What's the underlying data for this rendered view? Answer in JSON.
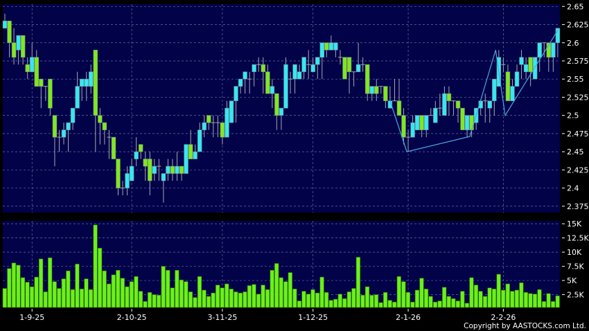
{
  "chart_data": {
    "type": "candlestick",
    "title": "",
    "colors": {
      "up": "#35e8f2",
      "down": "#80e81c",
      "doji": "#a0a0a0",
      "wick": "#a8a8b0",
      "volume": "#6cf01a",
      "background": "#020249",
      "grid": "#6a6aa8",
      "trendline": "#4aa8e0"
    },
    "price_axis": {
      "ylim": [
        2.37,
        2.65
      ],
      "ticks": [
        "2.65",
        "2.625",
        "2.6",
        "2.575",
        "2.55",
        "2.525",
        "2.5",
        "2.475",
        "2.45",
        "2.425",
        "2.4",
        "2.375"
      ],
      "grid": true
    },
    "volume_axis": {
      "unit": "K",
      "ylim": [
        0,
        15.3
      ],
      "ticks": [
        "15K",
        "12.5K",
        "10K",
        "7.5K",
        "5K",
        "2.5K"
      ],
      "grid": true
    },
    "x_ticks": [
      {
        "index": 6,
        "label": "1-9-25"
      },
      {
        "index": 28,
        "label": "2-10-25"
      },
      {
        "index": 48,
        "label": "3-11-25"
      },
      {
        "index": 68,
        "label": "1-12-25"
      },
      {
        "index": 89,
        "label": "2-1-26"
      },
      {
        "index": 110,
        "label": "2-2-26"
      }
    ],
    "ohlc": [
      [
        2.62,
        2.64,
        2.62,
        2.63
      ],
      [
        2.63,
        2.63,
        2.58,
        2.6
      ],
      [
        2.6,
        2.62,
        2.57,
        2.58
      ],
      [
        2.59,
        2.61,
        2.57,
        2.61
      ],
      [
        2.61,
        2.61,
        2.57,
        2.58
      ],
      [
        2.57,
        2.58,
        2.55,
        2.56
      ],
      [
        2.56,
        2.6,
        2.56,
        2.58
      ],
      [
        2.58,
        2.59,
        2.54,
        2.54
      ],
      [
        2.55,
        2.55,
        2.51,
        2.54
      ],
      [
        2.54,
        2.54,
        2.52,
        2.54
      ],
      [
        2.55,
        2.55,
        2.5,
        2.51
      ],
      [
        2.5,
        2.5,
        2.43,
        2.47
      ],
      [
        2.47,
        2.48,
        2.45,
        2.47
      ],
      [
        2.47,
        2.49,
        2.46,
        2.48
      ],
      [
        2.48,
        2.49,
        2.45,
        2.49
      ],
      [
        2.49,
        2.51,
        2.48,
        2.51
      ],
      [
        2.51,
        2.56,
        2.51,
        2.54
      ],
      [
        2.54,
        2.55,
        2.52,
        2.55
      ],
      [
        2.54,
        2.56,
        2.52,
        2.55
      ],
      [
        2.54,
        2.57,
        2.53,
        2.56
      ],
      [
        2.59,
        2.59,
        2.45,
        2.5
      ],
      [
        2.5,
        2.51,
        2.46,
        2.49
      ],
      [
        2.49,
        2.49,
        2.46,
        2.48
      ],
      [
        2.47,
        2.48,
        2.44,
        2.47
      ],
      [
        2.47,
        2.47,
        2.44,
        2.44
      ],
      [
        2.44,
        2.44,
        2.39,
        2.4
      ],
      [
        2.4,
        2.41,
        2.39,
        2.4
      ],
      [
        2.4,
        2.43,
        2.39,
        2.42
      ],
      [
        2.41,
        2.44,
        2.41,
        2.43
      ],
      [
        2.44,
        2.47,
        2.43,
        2.45
      ],
      [
        2.46,
        2.46,
        2.44,
        2.45
      ],
      [
        2.44,
        2.45,
        2.41,
        2.43
      ],
      [
        2.44,
        2.45,
        2.39,
        2.41
      ],
      [
        2.42,
        2.44,
        2.41,
        2.43
      ],
      [
        2.43,
        2.44,
        2.41,
        2.43
      ],
      [
        2.41,
        2.42,
        2.38,
        2.42
      ],
      [
        2.42,
        2.44,
        2.41,
        2.43
      ],
      [
        2.43,
        2.44,
        2.41,
        2.42
      ],
      [
        2.42,
        2.45,
        2.41,
        2.43
      ],
      [
        2.43,
        2.43,
        2.41,
        2.42
      ],
      [
        2.42,
        2.46,
        2.42,
        2.46
      ],
      [
        2.46,
        2.48,
        2.44,
        2.44
      ],
      [
        2.44,
        2.46,
        2.44,
        2.45
      ],
      [
        2.45,
        2.49,
        2.45,
        2.48
      ],
      [
        2.48,
        2.5,
        2.47,
        2.49
      ],
      [
        2.5,
        2.5,
        2.48,
        2.49
      ],
      [
        2.49,
        2.5,
        2.47,
        2.49
      ],
      [
        2.49,
        2.5,
        2.47,
        2.49
      ],
      [
        2.49,
        2.49,
        2.46,
        2.47
      ],
      [
        2.47,
        2.52,
        2.47,
        2.51
      ],
      [
        2.49,
        2.52,
        2.49,
        2.52
      ],
      [
        2.52,
        2.54,
        2.49,
        2.54
      ],
      [
        2.54,
        2.55,
        2.53,
        2.55
      ],
      [
        2.55,
        2.56,
        2.53,
        2.56
      ],
      [
        2.55,
        2.56,
        2.53,
        2.55
      ],
      [
        2.56,
        2.57,
        2.54,
        2.57
      ],
      [
        2.57,
        2.58,
        2.56,
        2.57
      ],
      [
        2.57,
        2.58,
        2.53,
        2.56
      ],
      [
        2.56,
        2.57,
        2.53,
        2.53
      ],
      [
        2.53,
        2.55,
        2.51,
        2.54
      ],
      [
        2.53,
        2.53,
        2.48,
        2.5
      ],
      [
        2.5,
        2.51,
        2.48,
        2.51
      ],
      [
        2.51,
        2.58,
        2.51,
        2.57
      ],
      [
        2.55,
        2.56,
        2.53,
        2.55
      ],
      [
        2.55,
        2.57,
        2.53,
        2.57
      ],
      [
        2.55,
        2.57,
        2.55,
        2.56
      ],
      [
        2.56,
        2.58,
        2.55,
        2.58
      ],
      [
        2.57,
        2.59,
        2.55,
        2.57
      ],
      [
        2.56,
        2.58,
        2.56,
        2.57
      ],
      [
        2.57,
        2.58,
        2.55,
        2.58
      ],
      [
        2.58,
        2.6,
        2.55,
        2.6
      ],
      [
        2.6,
        2.6,
        2.58,
        2.59
      ],
      [
        2.59,
        2.61,
        2.59,
        2.6
      ],
      [
        2.59,
        2.6,
        2.58,
        2.6
      ],
      [
        2.58,
        2.59,
        2.57,
        2.58
      ],
      [
        2.58,
        2.58,
        2.55,
        2.55
      ],
      [
        2.58,
        2.58,
        2.53,
        2.56
      ],
      [
        2.56,
        2.56,
        2.54,
        2.56
      ],
      [
        2.56,
        2.6,
        2.56,
        2.57
      ],
      [
        2.57,
        2.58,
        2.56,
        2.57
      ],
      [
        2.57,
        2.57,
        2.52,
        2.53
      ],
      [
        2.53,
        2.54,
        2.52,
        2.54
      ],
      [
        2.54,
        2.55,
        2.52,
        2.53
      ],
      [
        2.54,
        2.54,
        2.53,
        2.54
      ],
      [
        2.54,
        2.54,
        2.51,
        2.52
      ],
      [
        2.51,
        2.54,
        2.51,
        2.52
      ],
      [
        2.52,
        2.55,
        2.52,
        2.52
      ],
      [
        2.52,
        2.55,
        2.5,
        2.5
      ],
      [
        2.5,
        2.51,
        2.46,
        2.47
      ],
      [
        2.47,
        2.48,
        2.45,
        2.47
      ],
      [
        2.47,
        2.5,
        2.47,
        2.49
      ],
      [
        2.48,
        2.5,
        2.48,
        2.5
      ],
      [
        2.5,
        2.5,
        2.47,
        2.48
      ],
      [
        2.48,
        2.5,
        2.47,
        2.5
      ],
      [
        2.5,
        2.51,
        2.5,
        2.5
      ],
      [
        2.49,
        2.52,
        2.49,
        2.51
      ],
      [
        2.51,
        2.53,
        2.5,
        2.51
      ],
      [
        2.5,
        2.54,
        2.5,
        2.53
      ],
      [
        2.53,
        2.54,
        2.5,
        2.52
      ],
      [
        2.52,
        2.52,
        2.5,
        2.52
      ],
      [
        2.52,
        2.52,
        2.49,
        2.51
      ],
      [
        2.51,
        2.51,
        2.48,
        2.48
      ],
      [
        2.48,
        2.5,
        2.47,
        2.5
      ],
      [
        2.5,
        2.5,
        2.47,
        2.48
      ],
      [
        2.49,
        2.51,
        2.48,
        2.51
      ],
      [
        2.51,
        2.52,
        2.5,
        2.52
      ],
      [
        2.52,
        2.53,
        2.49,
        2.52
      ],
      [
        2.51,
        2.52,
        2.49,
        2.52
      ],
      [
        2.52,
        2.55,
        2.5,
        2.55
      ],
      [
        2.54,
        2.59,
        2.54,
        2.58
      ],
      [
        2.57,
        2.58,
        2.56,
        2.57
      ],
      [
        2.56,
        2.57,
        2.52,
        2.52
      ],
      [
        2.52,
        2.55,
        2.52,
        2.54
      ],
      [
        2.54,
        2.57,
        2.54,
        2.56
      ],
      [
        2.57,
        2.59,
        2.55,
        2.58
      ],
      [
        2.56,
        2.58,
        2.55,
        2.57
      ],
      [
        2.58,
        2.58,
        2.54,
        2.56
      ],
      [
        2.55,
        2.58,
        2.55,
        2.58
      ],
      [
        2.58,
        2.6,
        2.56,
        2.6
      ],
      [
        2.6,
        2.6,
        2.58,
        2.6
      ],
      [
        2.6,
        2.6,
        2.56,
        2.58
      ],
      [
        2.58,
        2.6,
        2.56,
        2.6
      ],
      [
        2.6,
        2.62,
        2.58,
        2.62
      ]
    ],
    "volume_k": [
      3.6,
      7.1,
      8.1,
      7.7,
      5.5,
      4.7,
      3.9,
      5.6,
      8.8,
      3.0,
      9.0,
      4.8,
      3.6,
      5.3,
      6.7,
      3.4,
      7.9,
      3.5,
      5.3,
      3.4,
      14.8,
      10.7,
      6.7,
      4.4,
      6.0,
      6.8,
      5.4,
      3.9,
      4.8,
      5.7,
      3.1,
      1.3,
      2.9,
      2.5,
      2.4,
      7.5,
      6.8,
      3.7,
      6.8,
      5.1,
      4.8,
      3.0,
      2.0,
      5.7,
      3.3,
      2.2,
      2.8,
      4.2,
      3.7,
      4.4,
      3.5,
      3.0,
      2.8,
      3.0,
      4.1,
      4.3,
      2.6,
      4.2,
      3.4,
      6.8,
      8.0,
      5.5,
      4.8,
      6.4,
      3.5,
      1.4,
      3.1,
      2.6,
      3.4,
      2.8,
      5.6,
      2.9,
      1.5,
      1.7,
      2.6,
      1.8,
      3.0,
      3.6,
      9.1,
      2.4,
      3.9,
      2.4,
      2.5,
      1.1,
      2.9,
      1.5,
      1.2,
      5.7,
      4.8,
      2.9,
      1.2,
      3.3,
      5.4,
      3.5,
      2.2,
      1.2,
      1.4,
      3.8,
      2.2,
      1.8,
      1.4,
      3.1,
      1.0,
      5.5,
      4.2,
      3.1,
      2.2,
      3.7,
      3.5,
      6.1,
      3.3,
      4.4,
      3.1,
      3.3,
      4.6,
      2.9,
      2.7,
      2.6,
      3.4,
      1.3,
      2.7,
      1.3,
      2.3
    ],
    "trendlines": [
      {
        "points": [
          [
            85,
            2.52
          ],
          [
            88.7,
            2.45
          ],
          [
            102.6,
            2.471
          ],
          [
            108.3,
            2.59
          ],
          [
            110.4,
            2.5
          ],
          [
            122,
            2.617
          ]
        ]
      }
    ]
  },
  "copyright": "Copyright by AASTOCKS.com Ltd."
}
